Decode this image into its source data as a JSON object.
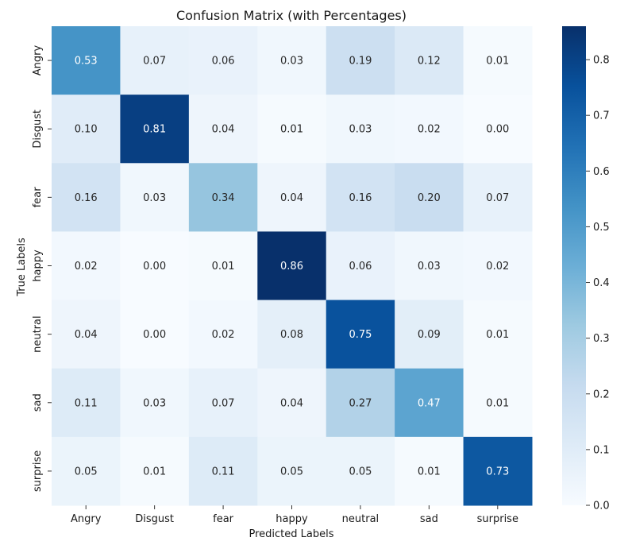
{
  "chart_data": {
    "type": "heatmap",
    "title": "Confusion Matrix (with Percentages)",
    "xlabel": "Predicted Labels",
    "ylabel": "True Labels",
    "x_categories": [
      "Angry",
      "Disgust",
      "fear",
      "happy",
      "neutral",
      "sad",
      "surprise"
    ],
    "y_categories": [
      "Angry",
      "Disgust",
      "fear",
      "happy",
      "neutral",
      "sad",
      "surprise"
    ],
    "values": [
      [
        0.53,
        0.07,
        0.06,
        0.03,
        0.19,
        0.12,
        0.01
      ],
      [
        0.1,
        0.81,
        0.04,
        0.01,
        0.03,
        0.02,
        0.0
      ],
      [
        0.16,
        0.03,
        0.34,
        0.04,
        0.16,
        0.2,
        0.07
      ],
      [
        0.02,
        0.0,
        0.01,
        0.86,
        0.06,
        0.03,
        0.02
      ],
      [
        0.04,
        0.0,
        0.02,
        0.08,
        0.75,
        0.09,
        0.01
      ],
      [
        0.11,
        0.03,
        0.07,
        0.04,
        0.27,
        0.47,
        0.01
      ],
      [
        0.05,
        0.01,
        0.11,
        0.05,
        0.05,
        0.01,
        0.73
      ]
    ],
    "colormap": "Blues",
    "vmin": 0.0,
    "vmax": 0.86,
    "colorbar_ticks": [
      "0.0",
      "0.1",
      "0.2",
      "0.3",
      "0.4",
      "0.5",
      "0.6",
      "0.7",
      "0.8"
    ],
    "grid": false,
    "legend": "colorbar-right"
  }
}
